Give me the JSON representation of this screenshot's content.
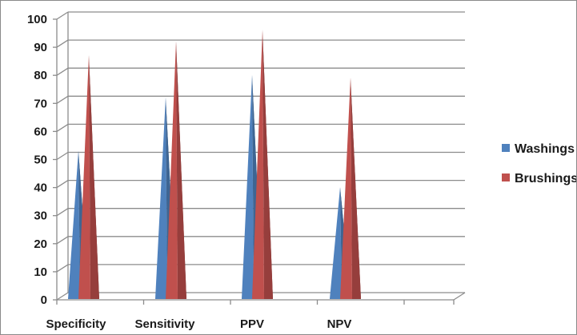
{
  "chart_data": {
    "type": "bar",
    "style": "3d-cone",
    "categories": [
      "Specificity",
      "Sensitivity",
      "PPV",
      "NPV"
    ],
    "series": [
      {
        "name": "Washings",
        "values": [
          52,
          71,
          79,
          39
        ],
        "color": "#4f81bd"
      },
      {
        "name": "Brushings",
        "values": [
          86,
          91,
          95,
          78
        ],
        "color": "#c0504d"
      }
    ],
    "ylim": [
      0,
      100
    ],
    "yticks": [
      0,
      10,
      20,
      30,
      40,
      50,
      60,
      70,
      80,
      90,
      100
    ],
    "grid": true,
    "legend": "right",
    "title": "",
    "xlabel": "",
    "ylabel": ""
  }
}
